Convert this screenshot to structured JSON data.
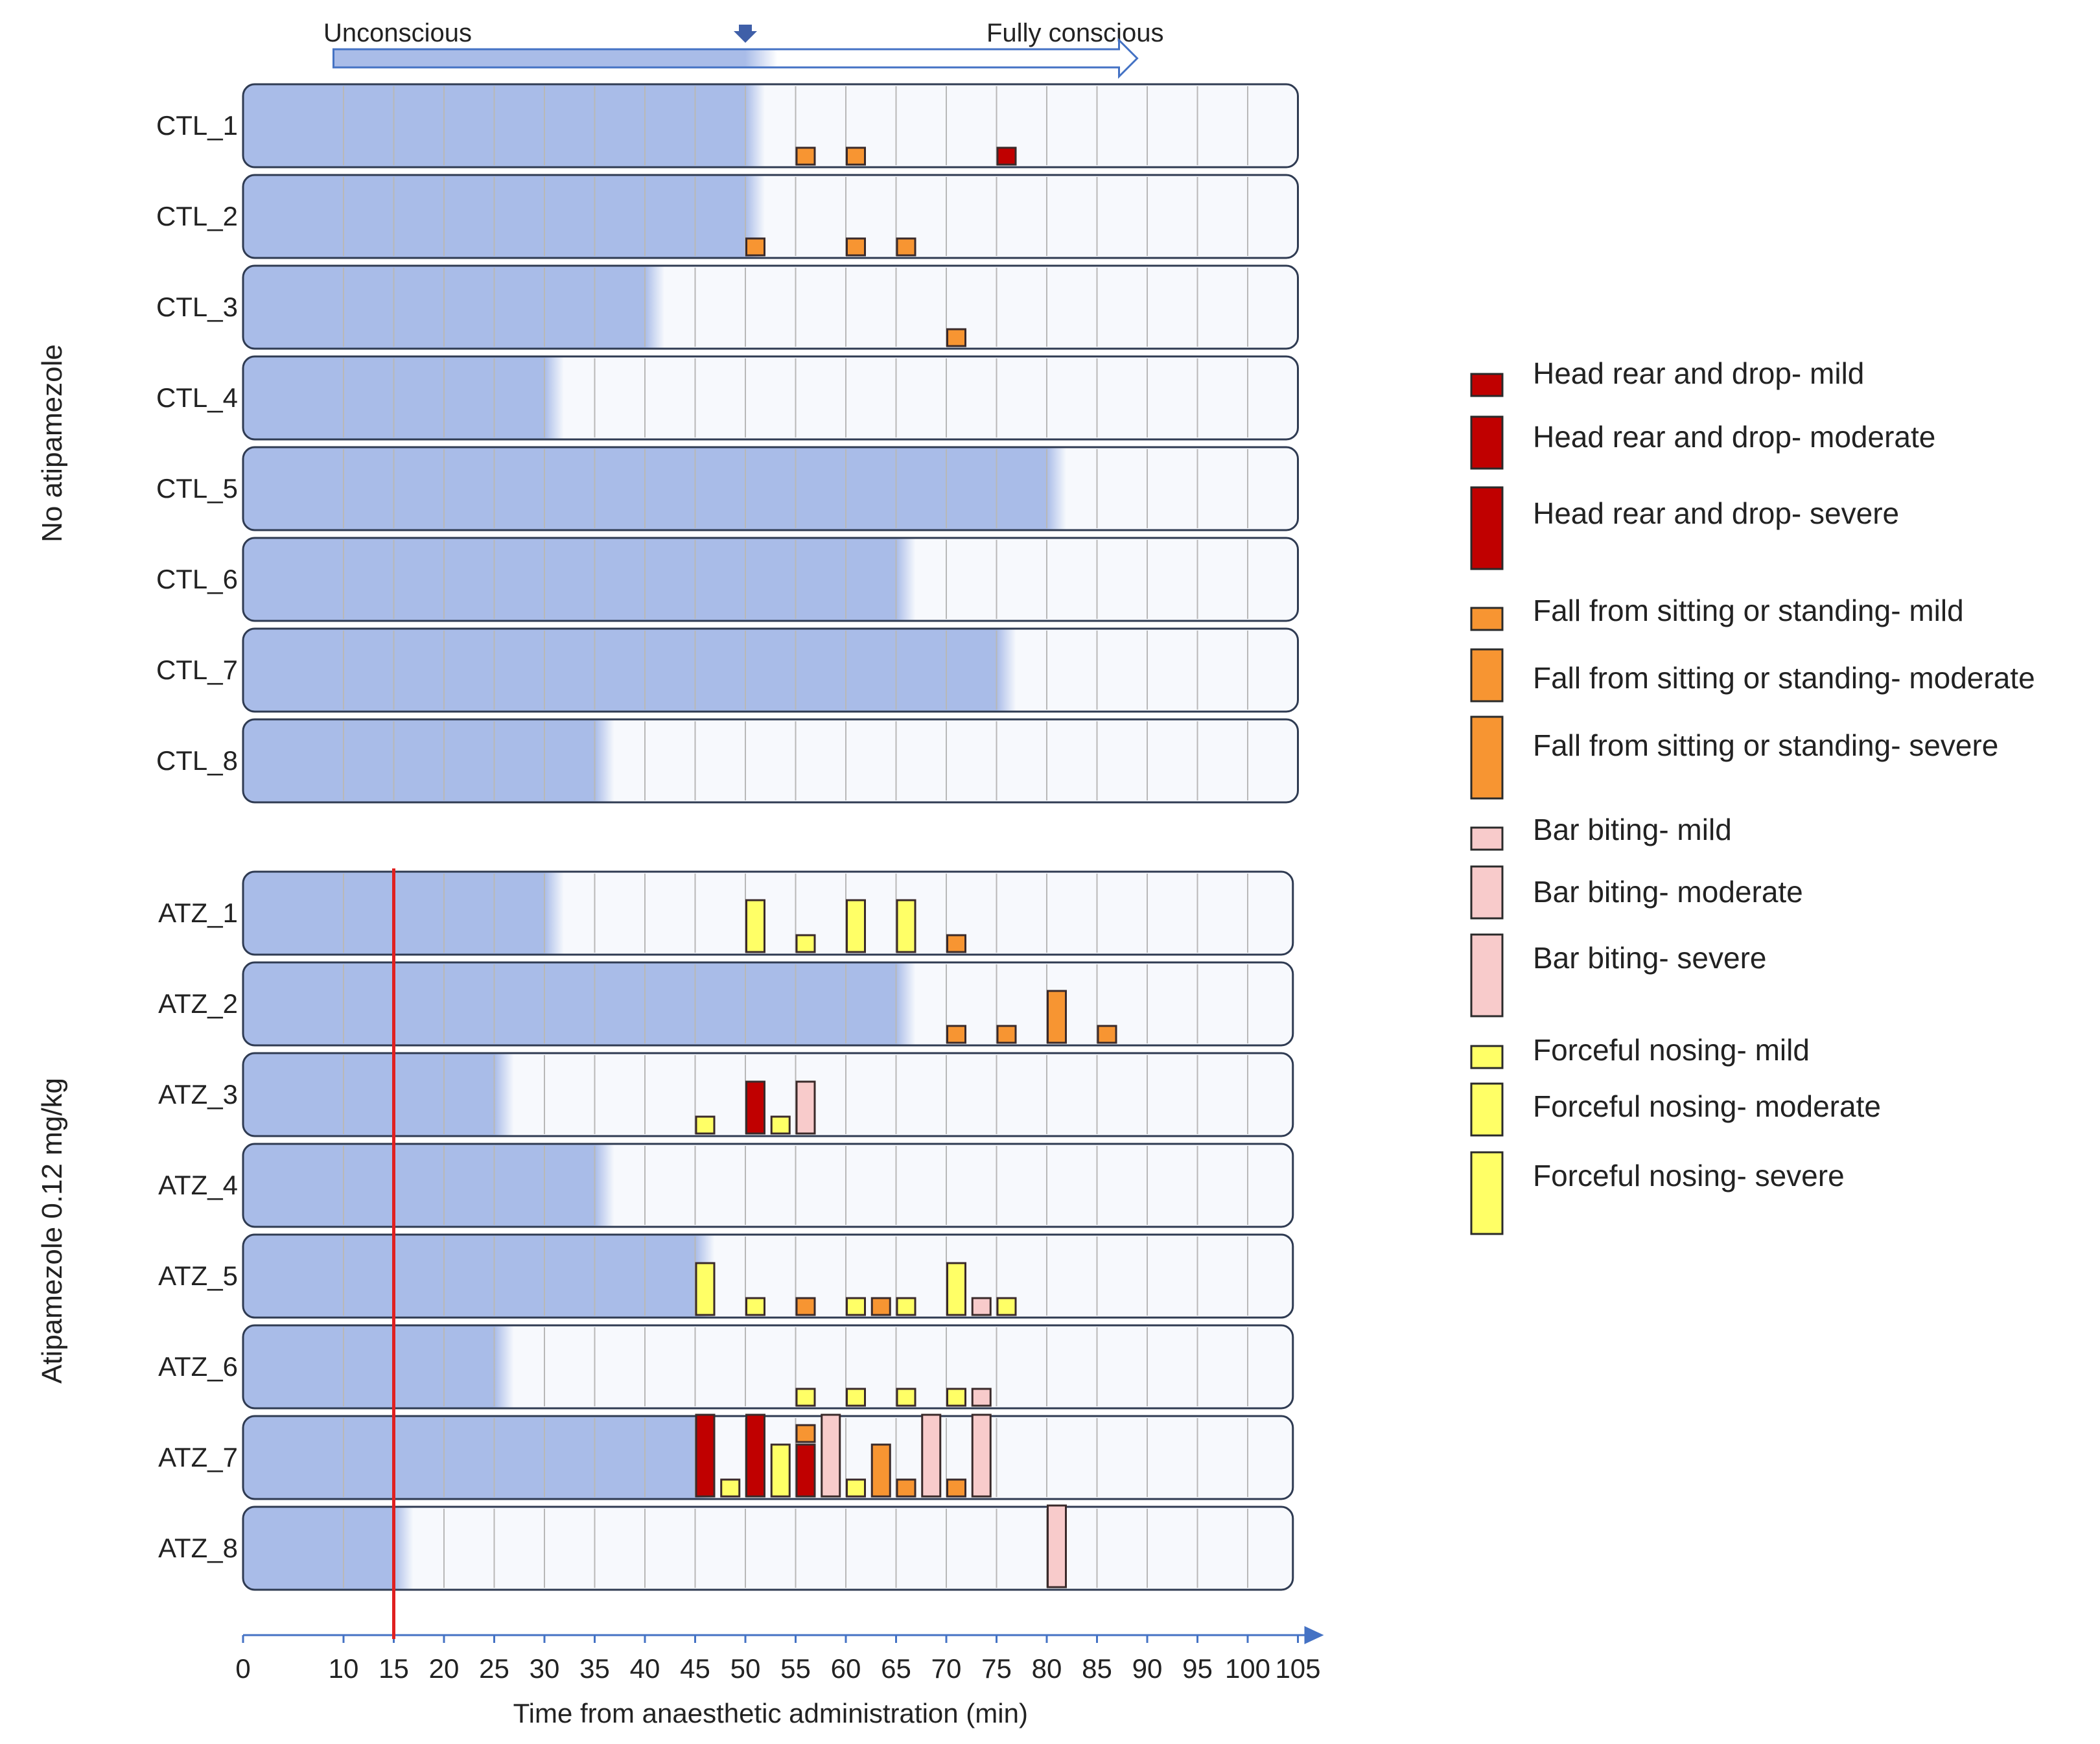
{
  "chart_data": {
    "type": "timeline",
    "xlabel": "Time from anaesthetic administration (min)",
    "xlim": [
      0,
      105
    ],
    "x_ticks": [
      0,
      10,
      15,
      20,
      25,
      30,
      35,
      40,
      45,
      50,
      55,
      60,
      65,
      70,
      75,
      80,
      85,
      90,
      95,
      100,
      105
    ],
    "consciousness": {
      "start_label": "Unconscious",
      "end_label": "Fully conscious",
      "arrow_start": 9,
      "arrow_end": 89,
      "marker": 50
    },
    "atipamezole_injection_time": 15,
    "groups": [
      {
        "name": "No atipamezole",
        "rows": [
          {
            "id": "CTL_1",
            "unconscious_until": 50,
            "events": [
              {
                "t": 56,
                "type": "fall",
                "severity": "mild"
              },
              {
                "t": 61,
                "type": "fall",
                "severity": "mild"
              },
              {
                "t": 76,
                "type": "head",
                "severity": "mild"
              }
            ]
          },
          {
            "id": "CTL_2",
            "unconscious_until": 50,
            "events": [
              {
                "t": 51,
                "type": "fall",
                "severity": "mild"
              },
              {
                "t": 61,
                "type": "fall",
                "severity": "mild"
              },
              {
                "t": 66,
                "type": "fall",
                "severity": "mild"
              }
            ]
          },
          {
            "id": "CTL_3",
            "unconscious_until": 40,
            "events": [
              {
                "t": 71,
                "type": "fall",
                "severity": "mild"
              }
            ]
          },
          {
            "id": "CTL_4",
            "unconscious_until": 30,
            "events": []
          },
          {
            "id": "CTL_5",
            "unconscious_until": 80,
            "events": []
          },
          {
            "id": "CTL_6",
            "unconscious_until": 65,
            "events": []
          },
          {
            "id": "CTL_7",
            "unconscious_until": 75,
            "events": []
          },
          {
            "id": "CTL_8",
            "unconscious_until": 35,
            "events": []
          }
        ]
      },
      {
        "name": "Atipamezole 0.12 mg/kg",
        "rows": [
          {
            "id": "ATZ_1",
            "unconscious_until": 30,
            "events": [
              {
                "t": 51,
                "type": "nosing",
                "severity": "moderate"
              },
              {
                "t": 56,
                "type": "nosing",
                "severity": "mild"
              },
              {
                "t": 61,
                "type": "nosing",
                "severity": "moderate"
              },
              {
                "t": 66,
                "type": "nosing",
                "severity": "moderate"
              },
              {
                "t": 71,
                "type": "fall",
                "severity": "mild"
              }
            ]
          },
          {
            "id": "ATZ_2",
            "unconscious_until": 65,
            "events": [
              {
                "t": 71,
                "type": "fall",
                "severity": "mild"
              },
              {
                "t": 76,
                "type": "fall",
                "severity": "mild"
              },
              {
                "t": 81,
                "type": "fall",
                "severity": "moderate"
              },
              {
                "t": 86,
                "type": "fall",
                "severity": "mild"
              }
            ]
          },
          {
            "id": "ATZ_3",
            "unconscious_until": 25,
            "events": [
              {
                "t": 46,
                "type": "nosing",
                "severity": "mild"
              },
              {
                "t": 51,
                "type": "head",
                "severity": "moderate"
              },
              {
                "t": 53.5,
                "type": "nosing",
                "severity": "mild"
              },
              {
                "t": 56,
                "type": "bar",
                "severity": "moderate"
              }
            ]
          },
          {
            "id": "ATZ_4",
            "unconscious_until": 35,
            "events": []
          },
          {
            "id": "ATZ_5",
            "unconscious_until": 45,
            "events": [
              {
                "t": 46,
                "type": "nosing",
                "severity": "moderate"
              },
              {
                "t": 51,
                "type": "nosing",
                "severity": "mild"
              },
              {
                "t": 56,
                "type": "fall",
                "severity": "mild"
              },
              {
                "t": 61,
                "type": "nosing",
                "severity": "mild"
              },
              {
                "t": 63.5,
                "type": "fall",
                "severity": "mild"
              },
              {
                "t": 66,
                "type": "nosing",
                "severity": "mild"
              },
              {
                "t": 71,
                "type": "nosing",
                "severity": "moderate"
              },
              {
                "t": 73.5,
                "type": "bar",
                "severity": "mild"
              },
              {
                "t": 76,
                "type": "nosing",
                "severity": "mild"
              }
            ]
          },
          {
            "id": "ATZ_6",
            "unconscious_until": 25,
            "events": [
              {
                "t": 56,
                "type": "nosing",
                "severity": "mild"
              },
              {
                "t": 61,
                "type": "nosing",
                "severity": "mild"
              },
              {
                "t": 66,
                "type": "nosing",
                "severity": "mild"
              },
              {
                "t": 71,
                "type": "nosing",
                "severity": "mild"
              },
              {
                "t": 73.5,
                "type": "bar",
                "severity": "mild"
              }
            ]
          },
          {
            "id": "ATZ_7",
            "unconscious_until": 45,
            "events": [
              {
                "t": 46,
                "type": "head",
                "severity": "severe"
              },
              {
                "t": 48.5,
                "type": "nosing",
                "severity": "mild"
              },
              {
                "t": 51,
                "type": "head",
                "severity": "severe"
              },
              {
                "t": 53.5,
                "type": "nosing",
                "severity": "moderate"
              },
              {
                "t": 56,
                "type": "head",
                "severity": "moderate"
              },
              {
                "t": 56,
                "type": "fall",
                "severity": "mild",
                "stack": "top"
              },
              {
                "t": 58.5,
                "type": "bar",
                "severity": "severe"
              },
              {
                "t": 61,
                "type": "nosing",
                "severity": "mild"
              },
              {
                "t": 63.5,
                "type": "fall",
                "severity": "moderate"
              },
              {
                "t": 66,
                "type": "fall",
                "severity": "mild"
              },
              {
                "t": 68.5,
                "type": "bar",
                "severity": "severe"
              },
              {
                "t": 71,
                "type": "fall",
                "severity": "mild"
              },
              {
                "t": 73.5,
                "type": "bar",
                "severity": "severe"
              }
            ]
          },
          {
            "id": "ATZ_8",
            "unconscious_until": 15,
            "events": [
              {
                "t": 81,
                "type": "bar",
                "severity": "severe"
              }
            ]
          }
        ]
      }
    ],
    "legend": [
      {
        "type": "head",
        "severity": "mild",
        "label": "Head rear and drop- mild"
      },
      {
        "type": "head",
        "severity": "moderate",
        "label": "Head rear and drop- moderate"
      },
      {
        "type": "head",
        "severity": "severe",
        "label": "Head rear and drop- severe"
      },
      {
        "type": "fall",
        "severity": "mild",
        "label": "Fall from sitting or standing- mild"
      },
      {
        "type": "fall",
        "severity": "moderate",
        "label": "Fall from sitting or standing- moderate"
      },
      {
        "type": "fall",
        "severity": "severe",
        "label": "Fall from sitting or standing- severe"
      },
      {
        "type": "bar",
        "severity": "mild",
        "label": "Bar biting- mild"
      },
      {
        "type": "bar",
        "severity": "moderate",
        "label": "Bar biting- moderate"
      },
      {
        "type": "bar",
        "severity": "severe",
        "label": "Bar biting- severe"
      },
      {
        "type": "nosing",
        "severity": "mild",
        "label": "Forceful nosing- mild"
      },
      {
        "type": "nosing",
        "severity": "moderate",
        "label": "Forceful nosing- moderate"
      },
      {
        "type": "nosing",
        "severity": "severe",
        "label": "Forceful nosing- severe"
      }
    ],
    "colors": {
      "head": "#c00000",
      "fall": "#f79532",
      "bar": "#f8cbcb",
      "nosing": "#ffff66",
      "unconscious": "#a9bce8",
      "conscious": "#f7f9fd",
      "injection_line": "#e02020",
      "axis": "#4472c4"
    }
  }
}
